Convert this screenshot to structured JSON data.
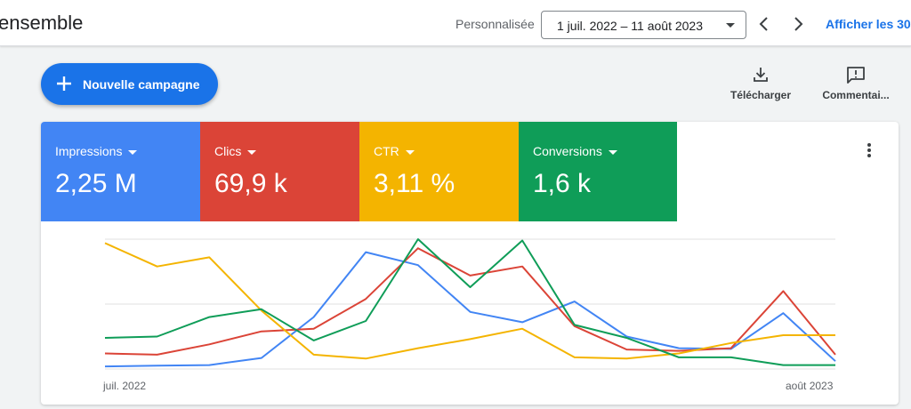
{
  "header": {
    "title": "ensemble",
    "custom_label": "Personnalisée",
    "date_range": "1 juil. 2022 – 11 août 2023",
    "show_link": "Afficher les 30"
  },
  "actions": {
    "new_campaign": "Nouvelle campagne",
    "download": "Télécharger",
    "comments": "Commentai..."
  },
  "metrics": [
    {
      "name": "Impressions",
      "value": "2,25 M",
      "color": "#4285f4"
    },
    {
      "name": "Clics",
      "value": "69,9 k",
      "color": "#db4437"
    },
    {
      "name": "CTR",
      "value": "3,11 %",
      "color": "#f4b400"
    },
    {
      "name": "Conversions",
      "value": "1,6 k",
      "color": "#0f9d58"
    }
  ],
  "chart_data": {
    "type": "line",
    "x": [
      "juil. 2022",
      "",
      "",
      "",
      "",
      "",
      "",
      "",
      "",
      "",
      "",
      "",
      "",
      "",
      "août 2023"
    ],
    "tick_labels": {
      "start": "juil. 2022",
      "end": "août 2023"
    },
    "ylim": [
      0,
      1
    ],
    "grid": true,
    "series": [
      {
        "name": "Impressions",
        "color": "#4285f4",
        "values": [
          0.02,
          0.025,
          0.03,
          0.085,
          0.4,
          0.9,
          0.8,
          0.44,
          0.36,
          0.52,
          0.25,
          0.16,
          0.155,
          0.43,
          0.06
        ]
      },
      {
        "name": "Clics",
        "color": "#db4437",
        "values": [
          0.12,
          0.11,
          0.19,
          0.29,
          0.31,
          0.54,
          0.93,
          0.72,
          0.79,
          0.33,
          0.15,
          0.14,
          0.16,
          0.6,
          0.11
        ]
      },
      {
        "name": "CTR",
        "color": "#f4b400",
        "values": [
          0.97,
          0.79,
          0.86,
          0.45,
          0.11,
          0.08,
          0.16,
          0.23,
          0.31,
          0.09,
          0.08,
          0.12,
          0.2,
          0.26,
          0.26
        ]
      },
      {
        "name": "Conversions",
        "color": "#0f9d58",
        "values": [
          0.24,
          0.25,
          0.4,
          0.46,
          0.22,
          0.37,
          1.0,
          0.63,
          0.99,
          0.34,
          0.24,
          0.09,
          0.09,
          0.03,
          0.03
        ]
      }
    ]
  }
}
